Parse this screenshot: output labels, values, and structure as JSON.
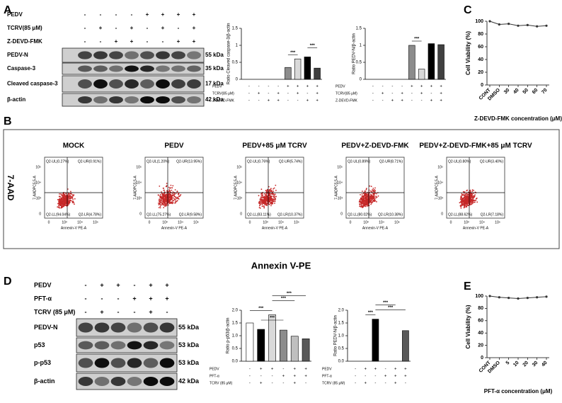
{
  "panel_labels": [
    "A",
    "B",
    "C",
    "D",
    "E"
  ],
  "blot_a": {
    "rows": [
      {
        "name": "PEDV",
        "signs": [
          "-",
          "-",
          "-",
          "-",
          "+",
          "+",
          "+",
          "+"
        ]
      },
      {
        "name": "TCRV(85 μM)",
        "signs": [
          "-",
          "+",
          "-",
          "+",
          "-",
          "+",
          "-",
          "+"
        ]
      },
      {
        "name": "Z-DEVD-FMK",
        "signs": [
          "-",
          "-",
          "+",
          "+",
          "-",
          "-",
          "+",
          "+"
        ]
      }
    ],
    "bands": [
      {
        "name": "PEDV-N",
        "size": "55 kDa"
      },
      {
        "name": "Caspase-3",
        "size": "35 kDa"
      },
      {
        "name": "Cleaved caspase-3",
        "size": "17 kDa"
      },
      {
        "name": "β-actin",
        "size": "42 kDa"
      }
    ]
  },
  "flow": {
    "y_title": "7-AAD",
    "x_title": "Annexin V-PE",
    "y_axis": "7-AADPC5.5-A",
    "x_axis": "Annexin-V PE-A",
    "ticks": [
      "0",
      "10³",
      "10⁴",
      "10⁵"
    ],
    "plots": [
      {
        "title": "MOCK",
        "quadrants": [
          "Q2-UL(0.27%)",
          "Q2-UR(0.91%)",
          "Q2-LL(94.04%)",
          "Q2-LR(4.78%)"
        ]
      },
      {
        "title": "PEDV",
        "quadrants": [
          "Q2-UL(1.20%)",
          "Q2-UR(13.95%)",
          "Q2-LL(75.27%)",
          "Q2-LR(9.58%)"
        ]
      },
      {
        "title": "PEDV+85 μM TCRV",
        "quadrants": [
          "Q2-UL(0.76%)",
          "Q2-UR(5.74%)",
          "Q2-LL(83.11%)",
          "Q2-LR(10.37%)"
        ]
      },
      {
        "title": "PEDV+Z-DEVD-FMK",
        "quadrants": [
          "Q2-UL(0.89%)",
          "Q2-UR(8.71%)",
          "Q2-LL(80.02%)",
          "Q2-LR(10.38%)"
        ]
      },
      {
        "title": "PEDV+Z-DEVD-FMK+85 μM TCRV",
        "quadrants": [
          "Q2-UL(0.80%)",
          "Q2-UR(3.40%)",
          "Q2-LL(88.62%)",
          "Q2-LR(7.18%)"
        ]
      }
    ]
  },
  "blot_d": {
    "rows": [
      {
        "name": "PEDV",
        "signs": [
          "-",
          "+",
          "+",
          "-",
          "+",
          "+"
        ]
      },
      {
        "name": "PFT-α",
        "signs": [
          "-",
          "-",
          "-",
          "+",
          "+",
          "+"
        ]
      },
      {
        "name": "TCRV (85 μM)",
        "signs": [
          "-",
          "+",
          "-",
          "-",
          "+",
          "-"
        ]
      }
    ],
    "bands": [
      {
        "name": "PEDV-N",
        "size": "55 kDa"
      },
      {
        "name": "p53",
        "size": "53 kDa"
      },
      {
        "name": "p-p53",
        "size": "53 kDa"
      },
      {
        "name": "β-actin",
        "size": "42 kDa"
      }
    ]
  },
  "chart_data": [
    {
      "type": "bar",
      "y_label": "Ratio Cleaved caspase-3/β-actin",
      "categories": [
        null,
        null,
        null,
        null,
        null,
        null,
        null,
        null
      ],
      "values": [
        0,
        0,
        0,
        0,
        0.35,
        0.6,
        0.66,
        0.33
      ],
      "colors": [
        "#8c8c8c",
        "#d9d9d9",
        "#000000",
        "#404040",
        "#8c8c8c",
        "#d9d9d9",
        "#000000",
        "#404040"
      ],
      "ylim": [
        0,
        1.5
      ],
      "yticks": [
        0,
        0.5,
        1,
        1.5
      ],
      "annotations": [
        "***",
        "***"
      ],
      "conditions": [
        {
          "name": "PEDV",
          "signs": [
            "-",
            "-",
            "-",
            "-",
            "+",
            "+",
            "+",
            "+"
          ]
        },
        {
          "name": "TCRV(85 μM)",
          "signs": [
            "-",
            "+",
            "-",
            "+",
            "-",
            "+",
            "-",
            "+"
          ]
        },
        {
          "name": "Z-DEVD-FMK",
          "signs": [
            "-",
            "-",
            "+",
            "+",
            "-",
            "-",
            "+",
            "+"
          ]
        }
      ]
    },
    {
      "type": "bar",
      "y_label": "Ratio PEDV-N/β-actin",
      "categories": [
        null,
        null,
        null,
        null,
        null,
        null,
        null,
        null
      ],
      "values": [
        0,
        0,
        0,
        0,
        1.0,
        0.3,
        1.05,
        1.02
      ],
      "colors": [
        "#8c8c8c",
        "#d9d9d9",
        "#000000",
        "#404040",
        "#8c8c8c",
        "#d9d9d9",
        "#000000",
        "#404040"
      ],
      "ylim": [
        0,
        1.5
      ],
      "yticks": [
        0,
        0.5,
        1,
        1.5
      ],
      "annotations": [
        "***"
      ],
      "conditions": [
        {
          "name": "PEDV",
          "signs": [
            "-",
            "-",
            "-",
            "-",
            "+",
            "+",
            "+",
            "+"
          ]
        },
        {
          "name": "TCRV(85 μM)",
          "signs": [
            "-",
            "+",
            "-",
            "+",
            "-",
            "+",
            "-",
            "+"
          ]
        },
        {
          "name": "Z-DEVD-FMK",
          "signs": [
            "-",
            "-",
            "+",
            "+",
            "-",
            "-",
            "+",
            "+"
          ]
        }
      ]
    },
    {
      "type": "line",
      "y_label": "Cell Viability (%)",
      "x_label": "Z-DEVD-FMK concentration (μM)",
      "categories": [
        "CONT",
        "DMSO",
        "30",
        "40",
        "50",
        "60",
        "70"
      ],
      "values": [
        100,
        95,
        96,
        93,
        94,
        92,
        93
      ],
      "color": "#333333",
      "ylim": [
        0,
        100
      ],
      "yticks": [
        0,
        20,
        40,
        60,
        80,
        100
      ]
    },
    {
      "type": "bar",
      "y_label": "Ratio p-p53/β-actin",
      "categories": [
        null,
        null,
        null,
        null,
        null,
        null
      ],
      "values": [
        1.5,
        1.25,
        1.82,
        1.22,
        0.98,
        0.88
      ],
      "colors": [
        "#ffffff",
        "#000000",
        "#d9d9d9",
        "#8c8c8c",
        "#bfbfbf",
        "#595959"
      ],
      "ylim": [
        0,
        2
      ],
      "yticks": [
        {
          "value": 0,
          "label": "0.0"
        },
        {
          "value": 0.5,
          "label": "0.5"
        },
        {
          "value": 1,
          "label": "1.0"
        },
        {
          "value": 1.5,
          "label": "1.5"
        },
        {
          "value": 2,
          "label": "2.0"
        }
      ],
      "annotations": [
        "***",
        "***",
        "***",
        "***"
      ],
      "conditions": [
        {
          "name": "PEDV",
          "signs": [
            "-",
            "+",
            "+",
            "-",
            "+",
            "+"
          ]
        },
        {
          "name": "PFT-α",
          "signs": [
            "-",
            "-",
            "-",
            "+",
            "+",
            "+"
          ]
        },
        {
          "name": "TCRV (85 μM)",
          "signs": [
            "-",
            "+",
            "-",
            "-",
            "+",
            "-"
          ]
        }
      ]
    },
    {
      "type": "bar",
      "y_label": "Ratio PEDV-N/β-actin",
      "categories": [
        null,
        null,
        null,
        null,
        null,
        null
      ],
      "values": [
        0,
        0,
        1.65,
        0,
        0,
        1.2
      ],
      "colors": [
        "#ffffff",
        "#000000",
        "#000000",
        "#8c8c8c",
        "#bfbfbf",
        "#595959"
      ],
      "ylim": [
        0,
        2
      ],
      "yticks": [
        {
          "value": 0,
          "label": "0.0"
        },
        {
          "value": 0.5,
          "label": "0.5"
        },
        {
          "value": 1,
          "label": "1.0"
        },
        {
          "value": 1.5,
          "label": "1.5"
        },
        {
          "value": 2,
          "label": "2.0"
        }
      ],
      "annotations": [
        "***",
        "***",
        "***"
      ],
      "conditions": [
        {
          "name": "PEDV",
          "signs": [
            "-",
            "+",
            "+",
            "-",
            "+",
            "+"
          ]
        },
        {
          "name": "PFT-α",
          "signs": [
            "-",
            "-",
            "-",
            "+",
            "+",
            "+"
          ]
        },
        {
          "name": "TCRV (85 μM)",
          "signs": [
            "-",
            "+",
            "-",
            "-",
            "+",
            "-"
          ]
        }
      ]
    },
    {
      "type": "line",
      "y_label": "Cell Viability (%)",
      "x_label": "PFT-α concentration (μM)",
      "categories": [
        "CONT",
        "DMSO",
        "5",
        "10",
        "20",
        "30",
        "40"
      ],
      "values": [
        100,
        98,
        97,
        96,
        97,
        98,
        99
      ],
      "color": "#333333",
      "ylim": [
        0,
        100
      ],
      "yticks": [
        0,
        20,
        40,
        60,
        80,
        100
      ]
    }
  ]
}
